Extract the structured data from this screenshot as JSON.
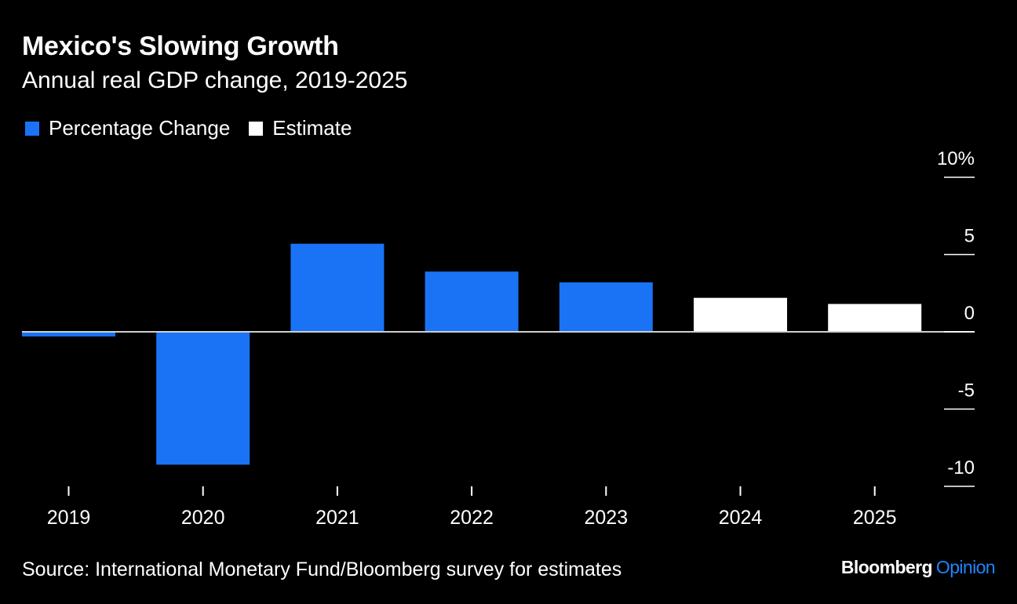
{
  "colors": {
    "background": "#000000",
    "actual": "#1a73f5",
    "estimate": "#ffffff",
    "brand_accent": "#1f84ff",
    "text": "#ffffff"
  },
  "chart_data": {
    "type": "bar",
    "title": "Mexico's Slowing Growth",
    "subtitle": "Annual real GDP change, 2019-2025",
    "categories": [
      "2019",
      "2020",
      "2021",
      "2022",
      "2023",
      "2024",
      "2025"
    ],
    "values": [
      -0.3,
      -8.6,
      5.7,
      3.9,
      3.2,
      2.2,
      1.8
    ],
    "bar_kinds": [
      "actual",
      "actual",
      "actual",
      "actual",
      "actual",
      "estimate",
      "estimate"
    ],
    "legend": [
      {
        "label": "Percentage Change",
        "kind": "actual"
      },
      {
        "label": "Estimate",
        "kind": "estimate"
      }
    ],
    "y_ticks": [
      {
        "value": 10,
        "label": "10%"
      },
      {
        "value": 5,
        "label": "5"
      },
      {
        "value": 0,
        "label": "0"
      },
      {
        "value": -5,
        "label": "-5"
      },
      {
        "value": -10,
        "label": "-10"
      }
    ],
    "ylim": [
      -10,
      10
    ],
    "xlabel": "",
    "ylabel": "",
    "y_axis_side": "right",
    "grid": false
  },
  "footer": {
    "source": "Source: International Monetary Fund/Bloomberg survey for estimates",
    "brand_main": "Bloomberg",
    "brand_sub": "Opinion"
  }
}
